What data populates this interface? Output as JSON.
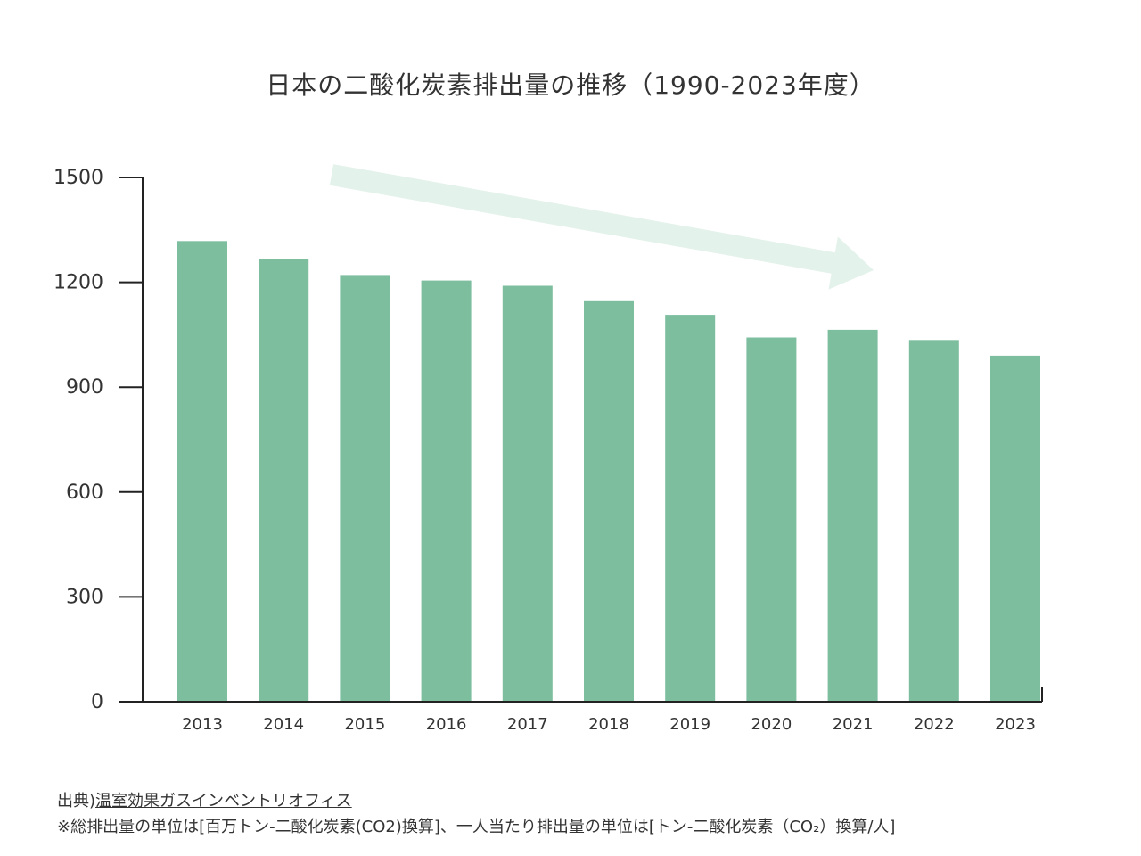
{
  "title": "日本の二酸化炭素排出量の推移（1990-2023年度）",
  "colors": {
    "bar": "#7dbe9f",
    "arrow": "#e3f2ea",
    "axis": "#222222",
    "text": "#333333"
  },
  "chart_data": {
    "type": "bar",
    "categories": [
      "2013",
      "2014",
      "2015",
      "2016",
      "2017",
      "2018",
      "2019",
      "2020",
      "2021",
      "2022",
      "2023"
    ],
    "values": [
      1318,
      1266,
      1221,
      1205,
      1190,
      1146,
      1107,
      1042,
      1064,
      1035,
      990
    ],
    "yticks": [
      0,
      300,
      600,
      900,
      1200,
      1500
    ],
    "ylim": [
      0,
      1500
    ],
    "grid": false,
    "legend": "none",
    "annotation": "downward-trend-arrow"
  },
  "footer": {
    "source_prefix": "出典)",
    "source_link": "温室効果ガスインベントリオフィス",
    "note": "※総排出量の単位は[百万トン-二酸化炭素(CO2)換算]、一人当たり排出量の単位は[トン-二酸化炭素（CO₂）換算/人]"
  }
}
